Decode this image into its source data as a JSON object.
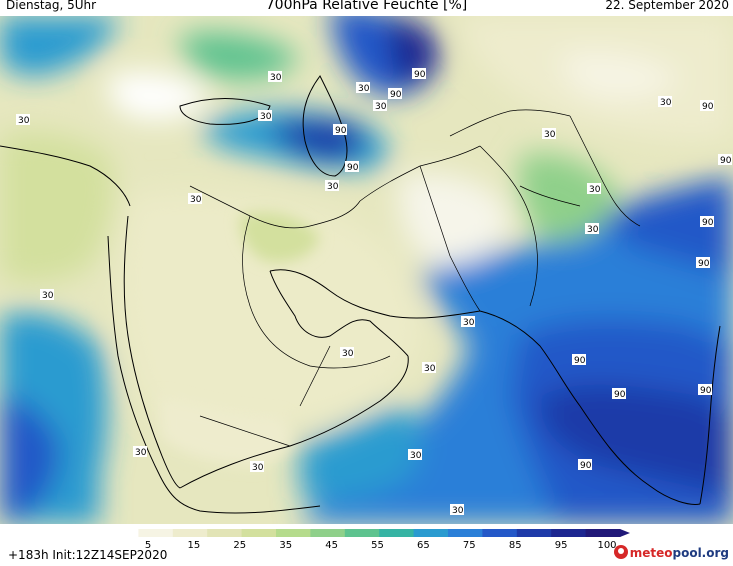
{
  "header": {
    "day_time": "Dienstag, 5Uhr",
    "title": "700hPa Relative Feuchte [%]",
    "date": "22. September 2020"
  },
  "footer": {
    "run_info": "+183h Init:12Z14SEP2020",
    "logo_text_m": "meteo",
    "logo_text_rest": "pool.org"
  },
  "colorbar": {
    "ticks": [
      "5",
      "15",
      "25",
      "35",
      "45",
      "55",
      "65",
      "75",
      "85",
      "95",
      "100"
    ],
    "colors": [
      "#ffffff",
      "#f6f4e4",
      "#eeeccd",
      "#e2e4b6",
      "#d3e09e",
      "#b5db8c",
      "#8fd08a",
      "#5ec38f",
      "#36b4a4",
      "#2a9bd0",
      "#2a7fd8",
      "#2458c8",
      "#1e3aa8",
      "#1c2690",
      "#201878"
    ]
  },
  "contour_labels": [
    {
      "text": "30"
    },
    {
      "text": "30"
    },
    {
      "text": "30"
    },
    {
      "text": "90"
    },
    {
      "text": "30"
    },
    {
      "text": "90"
    },
    {
      "text": "30"
    },
    {
      "text": "90"
    },
    {
      "text": "30"
    },
    {
      "text": "90"
    },
    {
      "text": "30"
    },
    {
      "text": "30"
    },
    {
      "text": "90"
    },
    {
      "text": "90"
    },
    {
      "text": "30"
    },
    {
      "text": "30"
    },
    {
      "text": "30"
    },
    {
      "text": "90"
    },
    {
      "text": "90"
    },
    {
      "text": "30"
    },
    {
      "text": "90"
    },
    {
      "text": "30"
    },
    {
      "text": "30"
    },
    {
      "text": "30"
    },
    {
      "text": "90"
    },
    {
      "text": "30"
    },
    {
      "text": "30"
    },
    {
      "text": "90"
    }
  ]
}
